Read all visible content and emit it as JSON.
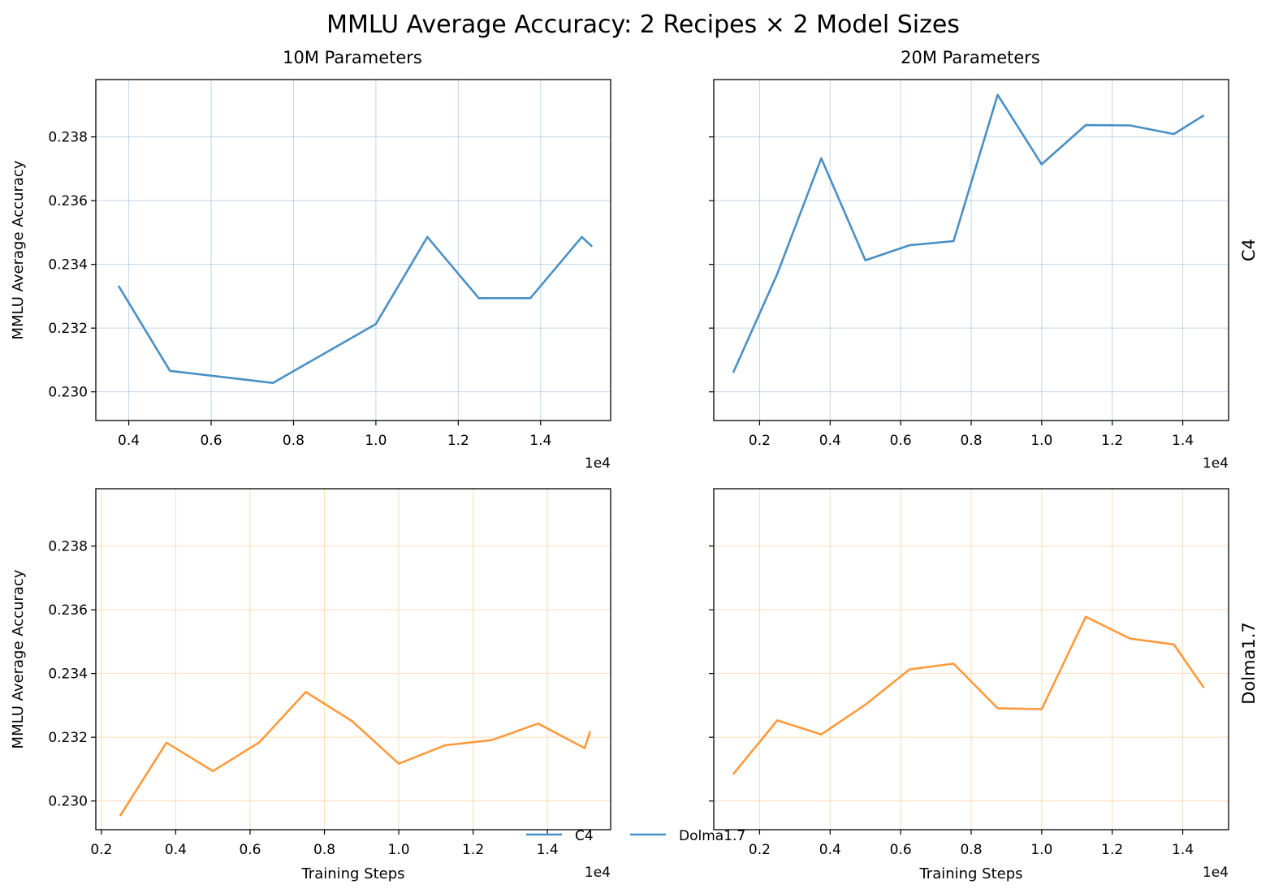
{
  "title": "MMLU Average Accuracy: 2 Recipes × 2 Model Sizes",
  "column_titles": [
    "10M Parameters",
    "20M Parameters"
  ],
  "row_titles": [
    "C4",
    "Dolma1.7"
  ],
  "legend": [
    "C4",
    "Dolma1.7"
  ],
  "colors": {
    "c4": "#4a90c4",
    "dolma": "#ff9a3c"
  },
  "chart_data": [
    {
      "type": "line",
      "title": "10M Parameters",
      "row_label": "C4",
      "xlabel": "",
      "ylabel": "MMLU Average Accuracy",
      "x_offset_text": "1e4",
      "xlim": [
        3200,
        15700
      ],
      "ylim": [
        0.2291,
        0.2398
      ],
      "xticks": [
        4000,
        6000,
        8000,
        10000,
        12000,
        14000
      ],
      "xtick_labels": [
        "0.4",
        "0.6",
        "0.8",
        "1.0",
        "1.2",
        "1.4"
      ],
      "yticks": [
        0.23,
        0.232,
        0.234,
        0.236,
        0.238
      ],
      "ytick_labels": [
        "0.230",
        "0.232",
        "0.234",
        "0.236",
        "0.238"
      ],
      "grid": true,
      "series": [
        {
          "color": "#4a90c4",
          "x": [
            3750,
            5000,
            7500,
            10000,
            11250,
            12500,
            13750,
            15000,
            15250
          ],
          "y": [
            0.23333,
            0.23066,
            0.23028,
            0.23213,
            0.23486,
            0.23294,
            0.23294,
            0.23486,
            0.23456
          ]
        }
      ]
    },
    {
      "type": "line",
      "title": "20M Parameters",
      "row_label": "C4",
      "xlabel": "",
      "ylabel": "",
      "x_offset_text": "1e4",
      "xlim": [
        700,
        15300
      ],
      "ylim": [
        0.2291,
        0.2398
      ],
      "xticks": [
        2000,
        4000,
        6000,
        8000,
        10000,
        12000,
        14000
      ],
      "xtick_labels": [
        "0.2",
        "0.4",
        "0.6",
        "0.8",
        "1.0",
        "1.2",
        "1.4"
      ],
      "yticks": [
        0.23,
        0.232,
        0.234,
        0.236,
        0.238
      ],
      "ytick_labels": [],
      "grid": true,
      "series": [
        {
          "color": "#4a90c4",
          "x": [
            1250,
            2500,
            3750,
            5000,
            6250,
            7500,
            8750,
            10000,
            11250,
            12500,
            13750,
            14600
          ],
          "y": [
            0.2306,
            0.2337,
            0.23733,
            0.23413,
            0.2346,
            0.23473,
            0.23932,
            0.23714,
            0.23837,
            0.23836,
            0.23809,
            0.23868
          ]
        }
      ]
    },
    {
      "type": "line",
      "title": "",
      "row_label": "Dolma1.7",
      "xlabel": "Training Steps",
      "ylabel": "MMLU Average Accuracy",
      "x_offset_text": "1e4",
      "xlim": [
        1850,
        15700
      ],
      "ylim": [
        0.2291,
        0.2398
      ],
      "xticks": [
        2000,
        4000,
        6000,
        8000,
        10000,
        12000,
        14000
      ],
      "xtick_labels": [
        "0.2",
        "0.4",
        "0.6",
        "0.8",
        "1.0",
        "1.2",
        "1.4"
      ],
      "yticks": [
        0.23,
        0.232,
        0.234,
        0.236,
        0.238
      ],
      "ytick_labels": [
        "0.230",
        "0.232",
        "0.234",
        "0.236",
        "0.238"
      ],
      "grid": true,
      "series": [
        {
          "color": "#ff9a3c",
          "x": [
            2500,
            3750,
            5000,
            6250,
            7500,
            8750,
            10000,
            11250,
            12500,
            13750,
            15000,
            15150
          ],
          "y": [
            0.22953,
            0.23183,
            0.23094,
            0.23184,
            0.23342,
            0.2325,
            0.23117,
            0.23175,
            0.23191,
            0.23243,
            0.23166,
            0.23219
          ]
        }
      ]
    },
    {
      "type": "line",
      "title": "",
      "row_label": "Dolma1.7",
      "xlabel": "Training Steps",
      "ylabel": "",
      "x_offset_text": "1e4",
      "xlim": [
        700,
        15300
      ],
      "ylim": [
        0.2291,
        0.2398
      ],
      "xticks": [
        2000,
        4000,
        6000,
        8000,
        10000,
        12000,
        14000
      ],
      "xtick_labels": [
        "0.2",
        "0.4",
        "0.6",
        "0.8",
        "1.0",
        "1.2",
        "1.4"
      ],
      "yticks": [
        0.23,
        0.232,
        0.234,
        0.236,
        0.238
      ],
      "ytick_labels": [],
      "grid": true,
      "series": [
        {
          "color": "#ff9a3c",
          "x": [
            1250,
            2500,
            3750,
            5000,
            6250,
            7500,
            8750,
            10000,
            11250,
            12500,
            13750,
            14600
          ],
          "y": [
            0.23084,
            0.23253,
            0.23209,
            0.23302,
            0.23413,
            0.23431,
            0.23291,
            0.23288,
            0.23578,
            0.2351,
            0.23491,
            0.23355
          ]
        }
      ]
    }
  ]
}
